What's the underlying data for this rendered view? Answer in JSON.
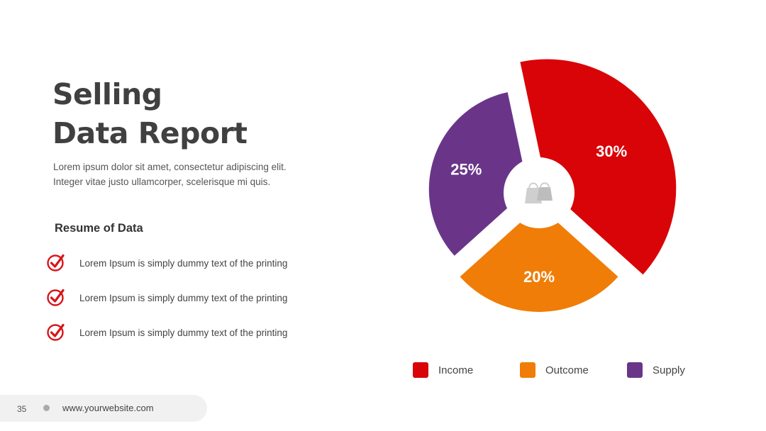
{
  "slide": {
    "title_line1": "Selling",
    "title_line2": "Data Report",
    "desc_line1": "Lorem ipsum dolor sit amet, consectetur adipiscing elit.",
    "desc_line2": "Integer vitae justo ullamcorper, scelerisque mi quis.",
    "section_title": "Resume of Data",
    "items": [
      "Lorem Ipsum is simply dummy text of the printing",
      "Lorem Ipsum is simply dummy text of the printing",
      "Lorem Ipsum is simply dummy text of the printing"
    ],
    "check_icon": "check-circle-icon",
    "accent_color": "#d7161b"
  },
  "footer": {
    "page_number": "35",
    "website": "www.yourwebsite.com"
  },
  "chart_data": {
    "type": "pie",
    "title": "",
    "categories": [
      "Income",
      "Outcome",
      "Supply"
    ],
    "values": [
      30,
      20,
      25
    ],
    "labels": [
      "30%",
      "20%",
      "25%"
    ],
    "colors": [
      "#d90407",
      "#f07d07",
      "#6a3589"
    ],
    "legend": "bottom",
    "center_icon": "shopping-bags-icon"
  }
}
